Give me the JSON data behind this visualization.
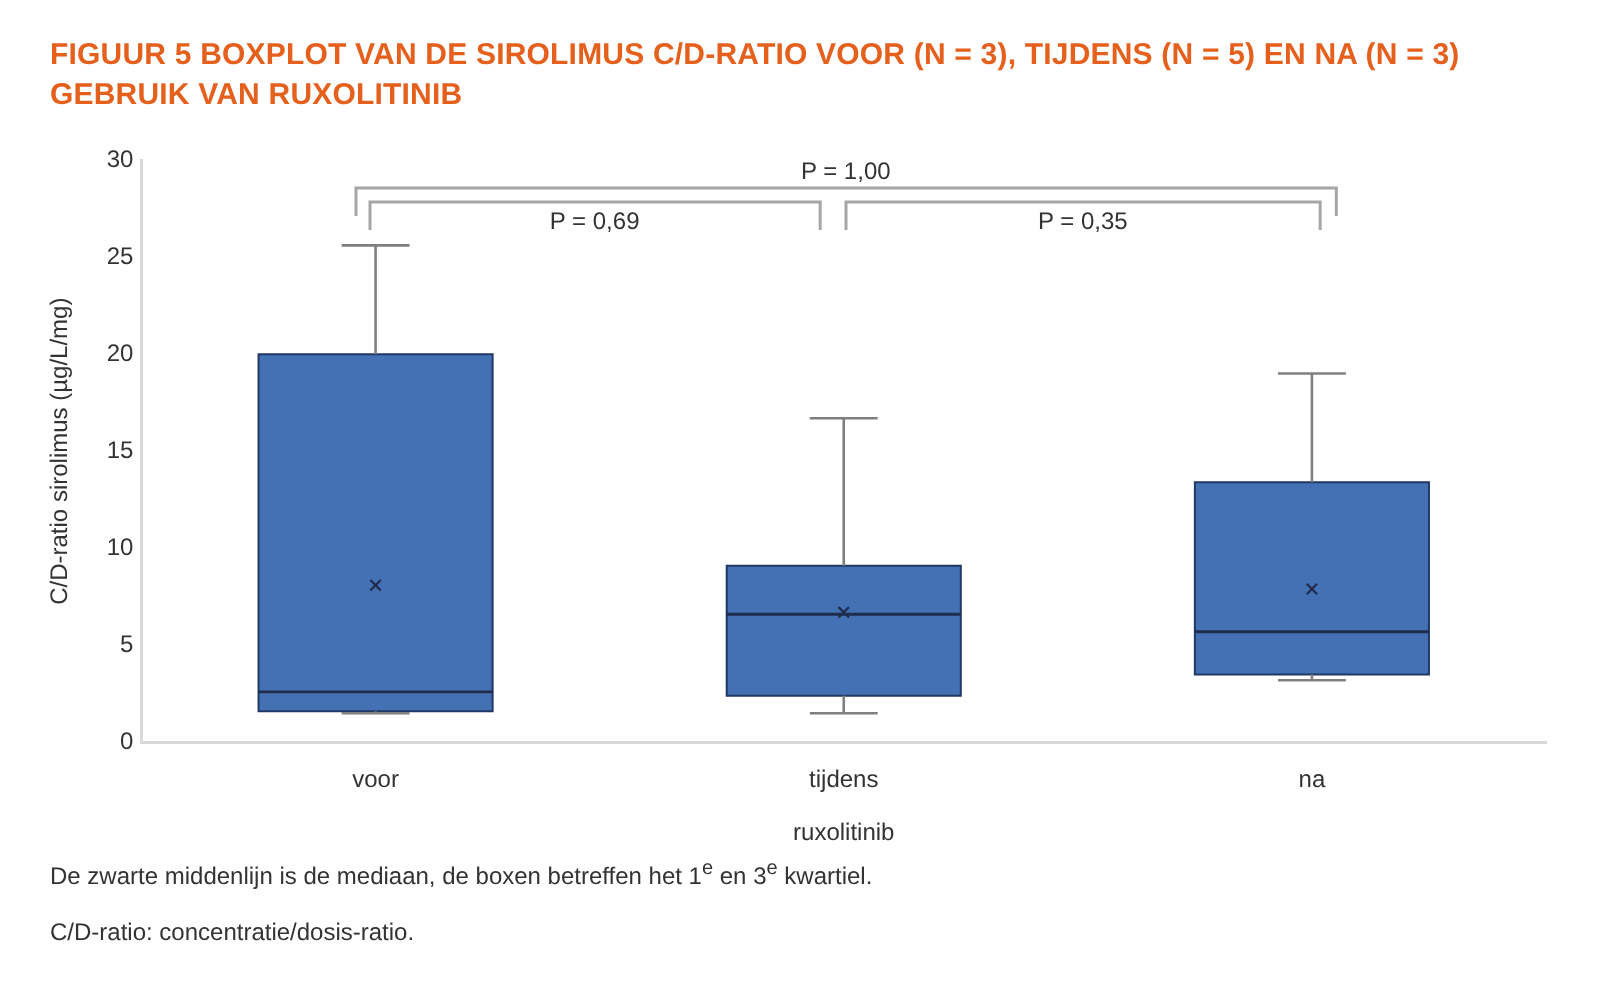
{
  "chart_data": {
    "type": "box",
    "title": "FIGUUR 5 BOXPLOT VAN DE SIROLIMUS C/D-RATIO VOOR (N = 3), TIJDENS (N = 5) EN NA (N = 3) GEBRUIK VAN RUXOLITINIB",
    "xlabel": "ruxolitinib",
    "ylabel": "C/D-ratio sirolimus (µg/L/mg)",
    "categories": [
      "voor",
      "tijdens",
      "na"
    ],
    "color": "#4470b4",
    "boxes": [
      {
        "low": 1.5,
        "q1": 1.6,
        "median": 2.6,
        "q3": 20.0,
        "high": 25.6,
        "mean": 8.1
      },
      {
        "low": 1.5,
        "q1": 2.4,
        "median": 6.6,
        "q3": 9.1,
        "high": 16.7,
        "mean": 6.7
      },
      {
        "low": 3.2,
        "q1": 3.5,
        "median": 5.7,
        "q3": 13.4,
        "high": 19.0,
        "mean": 7.9
      }
    ],
    "ylim": [
      0,
      30
    ],
    "yticks": [
      0,
      5,
      10,
      15,
      20,
      25,
      30
    ],
    "annotations": [
      "P = 1,00",
      "P = 0,69",
      "P = 0,35",
      "De zwarte middenlijn is de mediaan, de boxen betreffen het 1$^{e}$ en 3$^{e}$ kwartiel.",
      "C/D-ratio: concentratie/dosis-ratio."
    ]
  }
}
